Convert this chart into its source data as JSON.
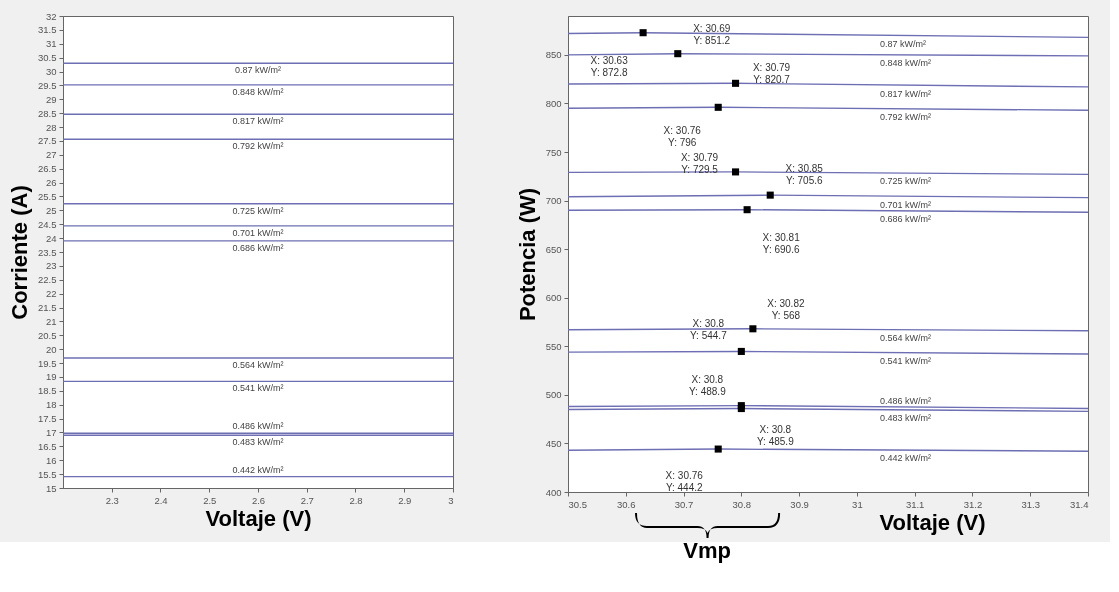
{
  "chart_data": [
    {
      "type": "line",
      "xlabel": "Voltaje (V)",
      "ylabel": "Corriente (A)",
      "xlim": [
        2.2,
        3
      ],
      "ylim": [
        15,
        32
      ],
      "xticks": [
        2.3,
        2.4,
        2.5,
        2.6,
        2.7,
        2.8,
        2.9,
        3
      ],
      "yticks": [
        15,
        15.5,
        16,
        16.5,
        17,
        17.5,
        18,
        18.5,
        19,
        19.5,
        20,
        20.5,
        21,
        21.5,
        22,
        22.5,
        23,
        23.5,
        24,
        24.5,
        25,
        25.5,
        26,
        26.5,
        27,
        27.5,
        28,
        28.5,
        29,
        29.5,
        30,
        30.5,
        31,
        31.5,
        32
      ],
      "legend": false,
      "marker": "none",
      "line_style": "solid",
      "series": [
        {
          "name": "0.87 kW/m²",
          "color": "#6e6eb4",
          "x": [
            2.2,
            3
          ],
          "values": [
            30.3,
            30.3
          ]
        },
        {
          "name": "0.848 kW/m²",
          "color": "#6e6eb4",
          "x": [
            2.2,
            3
          ],
          "values": [
            29.52,
            29.52
          ]
        },
        {
          "name": "0.817 kW/m²",
          "color": "#6e6eb4",
          "x": [
            2.2,
            3
          ],
          "values": [
            28.46,
            28.46
          ]
        },
        {
          "name": "0.792 kW/m²",
          "color": "#6e6eb4",
          "x": [
            2.2,
            3
          ],
          "values": [
            27.56,
            27.56
          ]
        },
        {
          "name": "0.725 kW/m²",
          "color": "#6e6eb4",
          "x": [
            2.2,
            3
          ],
          "values": [
            25.24,
            25.24
          ]
        },
        {
          "name": "0.701 kW/m²",
          "color": "#6e6eb4",
          "x": [
            2.2,
            3
          ],
          "values": [
            24.44,
            24.44
          ]
        },
        {
          "name": "0.686 kW/m²",
          "color": "#6e6eb4",
          "x": [
            2.2,
            3
          ],
          "values": [
            23.9,
            23.9
          ]
        },
        {
          "name": "0.564 kW/m²",
          "color": "#6e6eb4",
          "x": [
            2.2,
            3
          ],
          "values": [
            19.68,
            19.68
          ]
        },
        {
          "name": "0.541 kW/m²",
          "color": "#6e6eb4",
          "x": [
            2.2,
            3
          ],
          "values": [
            18.84,
            18.84
          ]
        },
        {
          "name": "0.486 kW/m²",
          "color": "#6e6eb4",
          "x": [
            2.2,
            3
          ],
          "values": [
            16.97,
            16.97
          ]
        },
        {
          "name": "0.483 kW/m²",
          "color": "#6e6eb4",
          "x": [
            2.2,
            3
          ],
          "values": [
            16.9,
            16.9
          ]
        },
        {
          "name": "0.442 kW/m²",
          "color": "#6e6eb4",
          "x": [
            2.2,
            3
          ],
          "values": [
            15.41,
            15.41
          ]
        }
      ]
    },
    {
      "type": "line",
      "xlabel": "Voltaje (V)",
      "ylabel": "Potencia (W)",
      "xlim": [
        30.5,
        31.4
      ],
      "ylim": [
        400,
        890
      ],
      "xticks": [
        30.5,
        30.6,
        30.7,
        30.8,
        30.9,
        31,
        31.1,
        31.2,
        31.3,
        31.4
      ],
      "yticks": [
        400,
        450,
        500,
        550,
        600,
        650,
        700,
        750,
        800,
        850
      ],
      "legend": false,
      "marker": "none",
      "line_style": "solid",
      "series": [
        {
          "name": "0.87 kW/m²",
          "color": "#6e6eb4",
          "x": [
            30.5,
            30.63,
            31.4
          ],
          "values": [
            872,
            872.8,
            868
          ]
        },
        {
          "name": "0.848 kW/m²",
          "color": "#6e6eb4",
          "x": [
            30.5,
            30.69,
            31.4
          ],
          "values": [
            850,
            851.2,
            849
          ]
        },
        {
          "name": "0.817 kW/m²",
          "color": "#6e6eb4",
          "x": [
            30.5,
            30.79,
            31.4
          ],
          "values": [
            820,
            820.7,
            817
          ]
        },
        {
          "name": "0.792 kW/m²",
          "color": "#6e6eb4",
          "x": [
            30.5,
            30.76,
            31.4
          ],
          "values": [
            795,
            796,
            793
          ]
        },
        {
          "name": "0.725 kW/m²",
          "color": "#6e6eb4",
          "x": [
            30.5,
            30.79,
            31.4
          ],
          "values": [
            729,
            729.5,
            727
          ]
        },
        {
          "name": "0.701 kW/m²",
          "color": "#6e6eb4",
          "x": [
            30.5,
            30.85,
            31.4
          ],
          "values": [
            704,
            705.6,
            703
          ]
        },
        {
          "name": "0.686 kW/m²",
          "color": "#6e6eb4",
          "x": [
            30.5,
            30.81,
            31.4
          ],
          "values": [
            690,
            690.6,
            688
          ]
        },
        {
          "name": "0.564 kW/m²",
          "color": "#6e6eb4",
          "x": [
            30.5,
            30.82,
            31.4
          ],
          "values": [
            567,
            568,
            566
          ]
        },
        {
          "name": "0.541 kW/m²",
          "color": "#6e6eb4",
          "x": [
            30.5,
            30.8,
            31.4
          ],
          "values": [
            544,
            544.7,
            542
          ]
        },
        {
          "name": "0.486 kW/m²",
          "color": "#6e6eb4",
          "x": [
            30.5,
            30.8,
            31.4
          ],
          "values": [
            488,
            488.9,
            486
          ]
        },
        {
          "name": "0.483 kW/m²",
          "color": "#6e6eb4",
          "x": [
            30.5,
            30.8,
            31.4
          ],
          "values": [
            485,
            485.9,
            483
          ]
        },
        {
          "name": "0.442 kW/m²",
          "color": "#6e6eb4",
          "x": [
            30.5,
            30.76,
            31.4
          ],
          "values": [
            443,
            444.2,
            442
          ]
        },
        {
          "type": "scatter",
          "marker": "square",
          "color": "#000000",
          "x": [
            30.63,
            30.69,
            30.79,
            30.76,
            30.79,
            30.85,
            30.81,
            30.82,
            30.8,
            30.8,
            30.8,
            30.76
          ],
          "values": [
            872.8,
            851.2,
            820.7,
            796,
            729.5,
            705.6,
            690.6,
            568,
            544.7,
            488.9,
            485.9,
            444.2
          ]
        }
      ],
      "annotations": [
        {
          "text": "X: 30.63\nY: 872.8",
          "x": 30.63,
          "y": 872.8
        },
        {
          "text": "X: 30.69\nY: 851.2",
          "x": 30.69,
          "y": 851.2
        },
        {
          "text": "X: 30.79\nY: 820.7",
          "x": 30.79,
          "y": 820.7
        },
        {
          "text": "X: 30.76\nY: 796",
          "x": 30.76,
          "y": 796
        },
        {
          "text": "X: 30.79\nY: 729.5",
          "x": 30.79,
          "y": 729.5
        },
        {
          "text": "X: 30.85\nY: 705.6",
          "x": 30.85,
          "y": 705.6
        },
        {
          "text": "X: 30.81\nY: 690.6",
          "x": 30.81,
          "y": 690.6
        },
        {
          "text": "X: 30.82\nY: 568",
          "x": 30.82,
          "y": 568
        },
        {
          "text": "X: 30.8\nY: 544.7",
          "x": 30.8,
          "y": 544.7
        },
        {
          "text": "X: 30.8\nY: 488.9",
          "x": 30.8,
          "y": 488.9
        },
        {
          "text": "X: 30.8\nY: 485.9",
          "x": 30.8,
          "y": 485.9
        },
        {
          "text": "X: 30.76\nY: 444.2",
          "x": 30.76,
          "y": 444.2
        },
        "Vmp"
      ]
    }
  ]
}
